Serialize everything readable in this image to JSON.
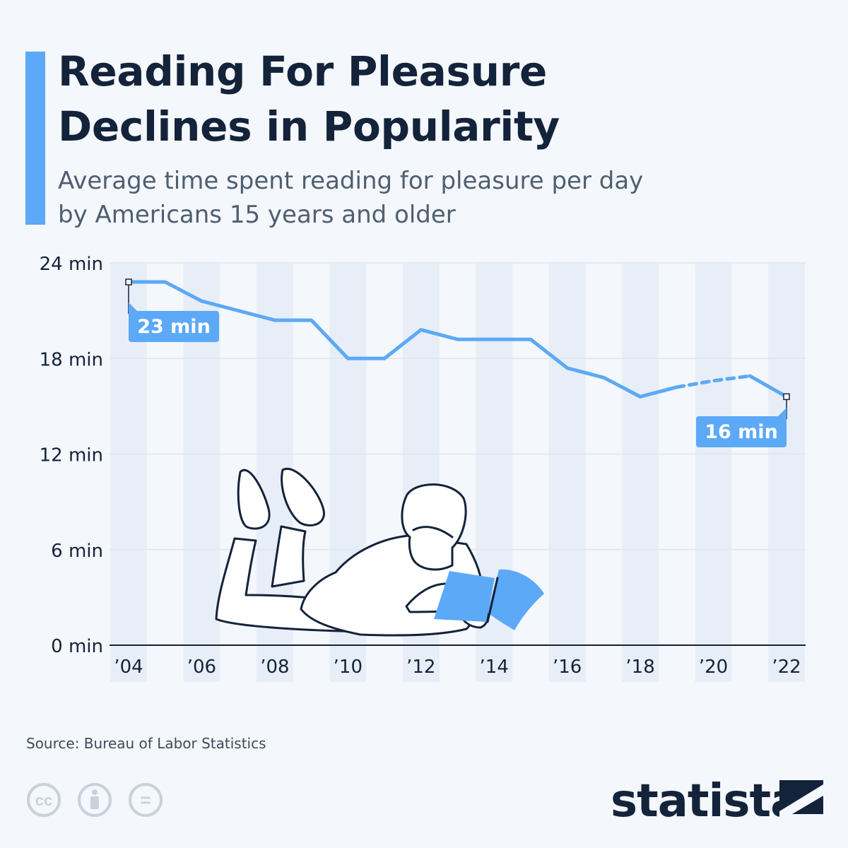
{
  "title_lines": [
    "Reading For Pleasure",
    "Declines in Popularity"
  ],
  "subtitle_lines": [
    "Average time spent reading for pleasure per day",
    "by Americans 15 years and older"
  ],
  "source": "Source: Bureau of Labor Statistics",
  "brand": "statista",
  "license_icons": [
    "creative-commons-icon",
    "attribution-icon",
    "no-derivatives-icon"
  ],
  "license_labels": {
    "cc": "cc",
    "nd": "="
  },
  "colors": {
    "accent": "#5ca9f7",
    "title": "#13233a",
    "subtitle": "#4f5e72",
    "grid": "#dfe5ee",
    "band": "#e8eef7",
    "illustration_stroke": "#13233a"
  },
  "chart_data": {
    "type": "line",
    "x": [
      2004,
      2005,
      2006,
      2007,
      2008,
      2009,
      2010,
      2011,
      2012,
      2013,
      2014,
      2015,
      2016,
      2017,
      2018,
      2019,
      2020,
      2021,
      2022
    ],
    "values": [
      22.8,
      22.8,
      21.6,
      21.0,
      20.4,
      20.4,
      18.0,
      18.0,
      19.8,
      19.2,
      19.2,
      19.2,
      17.4,
      16.8,
      15.6,
      16.2,
      16.6,
      16.9,
      15.6
    ],
    "dashed_segment": [
      2019,
      2021
    ],
    "ylim": [
      0,
      24
    ],
    "y_ticks": [
      0,
      6,
      12,
      18,
      24
    ],
    "y_tick_labels": [
      "0 min",
      "6 min",
      "12 min",
      "18 min",
      "24 min"
    ],
    "x_tick_labels": [
      "’04",
      "’06",
      "’08",
      "’10",
      "’12",
      "’14",
      "’16",
      "’18",
      "’20",
      "’22"
    ],
    "annotations": [
      {
        "x": 2004,
        "label": "23 min"
      },
      {
        "x": 2022,
        "label": "16 min"
      }
    ],
    "xlabel": "",
    "ylabel": "",
    "grid": true,
    "legend": "none"
  }
}
